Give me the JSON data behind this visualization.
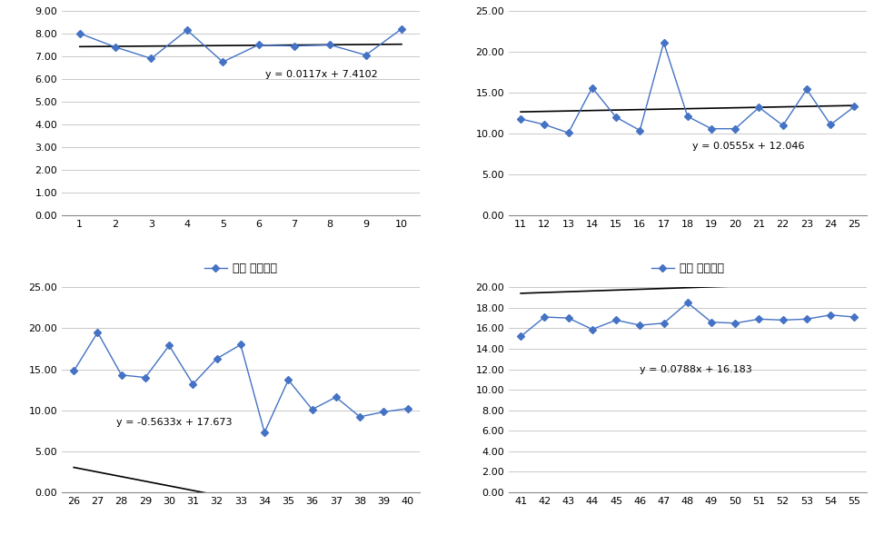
{
  "subplots": [
    {
      "x": [
        1,
        2,
        3,
        4,
        5,
        6,
        7,
        8,
        9,
        10
      ],
      "y": [
        8.0,
        7.4,
        6.9,
        8.15,
        6.75,
        7.5,
        7.45,
        7.5,
        7.05,
        8.2
      ],
      "trend_eq": "y = 0.0117x + 7.4102",
      "trend_slope": 0.0117,
      "trend_intercept": 7.4102,
      "ylim": [
        0.0,
        9.0
      ],
      "yticks": [
        0.0,
        1.0,
        2.0,
        3.0,
        4.0,
        5.0,
        6.0,
        7.0,
        8.0,
        9.0
      ],
      "xlim": [
        0.5,
        10.5
      ],
      "xticks": [
        1,
        2,
        3,
        4,
        5,
        6,
        7,
        8,
        9,
        10
      ],
      "eq_x": 6.2,
      "eq_y": 6.2,
      "eq_ha": "left"
    },
    {
      "x": [
        11,
        12,
        13,
        14,
        15,
        16,
        17,
        18,
        19,
        20,
        21,
        22,
        23,
        24,
        25
      ],
      "y": [
        11.8,
        11.1,
        10.1,
        15.6,
        12.0,
        10.4,
        21.1,
        12.1,
        10.6,
        10.6,
        13.2,
        11.0,
        15.4,
        11.1,
        13.3
      ],
      "trend_eq": "y = 0.0555x + 12.046",
      "trend_slope": 0.0555,
      "trend_intercept": 12.046,
      "ylim": [
        0.0,
        25.0
      ],
      "yticks": [
        0.0,
        5.0,
        10.0,
        15.0,
        20.0,
        25.0
      ],
      "xlim": [
        10.5,
        25.5
      ],
      "xticks": [
        11,
        12,
        13,
        14,
        15,
        16,
        17,
        18,
        19,
        20,
        21,
        22,
        23,
        24,
        25
      ],
      "eq_x": 18.2,
      "eq_y": 8.5,
      "eq_ha": "left"
    },
    {
      "x": [
        26,
        27,
        28,
        29,
        30,
        31,
        32,
        33,
        34,
        35,
        36,
        37,
        38,
        39,
        40
      ],
      "y": [
        14.8,
        19.5,
        14.3,
        14.0,
        17.9,
        13.2,
        16.3,
        18.0,
        7.3,
        13.7,
        10.1,
        11.6,
        9.2,
        9.8,
        10.2
      ],
      "trend_eq": "y = -0.5633x + 17.673",
      "trend_slope": -0.5633,
      "trend_intercept": 17.673,
      "ylim": [
        0.0,
        25.0
      ],
      "yticks": [
        0.0,
        5.0,
        10.0,
        15.0,
        20.0,
        25.0
      ],
      "xlim": [
        25.5,
        40.5
      ],
      "xticks": [
        26,
        27,
        28,
        29,
        30,
        31,
        32,
        33,
        34,
        35,
        36,
        37,
        38,
        39,
        40
      ],
      "eq_x": 27.8,
      "eq_y": 8.5,
      "eq_ha": "left"
    },
    {
      "x": [
        41,
        42,
        43,
        44,
        45,
        46,
        47,
        48,
        49,
        50,
        51,
        52,
        53,
        54,
        55
      ],
      "y": [
        15.2,
        17.1,
        17.0,
        15.9,
        16.8,
        16.3,
        16.5,
        18.5,
        16.6,
        16.5,
        16.9,
        16.8,
        16.9,
        17.3,
        17.1
      ],
      "trend_eq": "y = 0.0788x + 16.183",
      "trend_slope": 0.0788,
      "trend_intercept": 16.183,
      "ylim": [
        0.0,
        20.0
      ],
      "yticks": [
        0.0,
        2.0,
        4.0,
        6.0,
        8.0,
        10.0,
        12.0,
        14.0,
        16.0,
        18.0,
        20.0
      ],
      "xlim": [
        40.5,
        55.5
      ],
      "xticks": [
        41,
        42,
        43,
        44,
        45,
        46,
        47,
        48,
        49,
        50,
        51,
        52,
        53,
        54,
        55
      ],
      "eq_x": 46.0,
      "eq_y": 12.0,
      "eq_ha": "left"
    }
  ],
  "line_color": "#4472C4",
  "marker": "D",
  "marker_size": 4,
  "trend_color": "black",
  "legend_label": "평균 이동속도",
  "bg_color": "#FFFFFF",
  "grid_color": "#C0C0C0",
  "font_size_tick": 8,
  "font_size_legend": 9,
  "font_size_eq": 8
}
